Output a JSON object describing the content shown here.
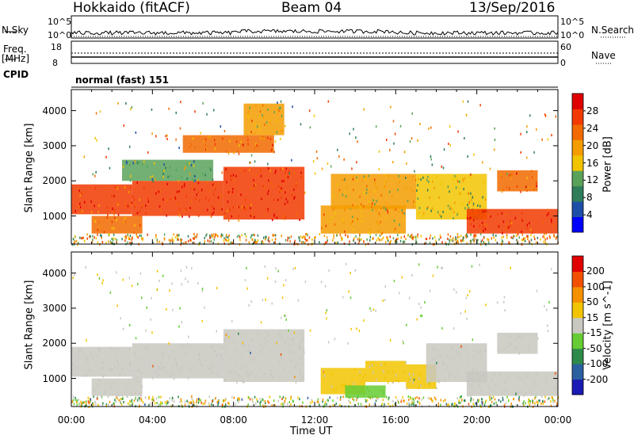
{
  "header": {
    "title_left": "Hokkaido (fitACF)",
    "title_center": "Beam 04",
    "title_right": "13/Sep/2016"
  },
  "top_panels": {
    "nsky_label": "N.Sky",
    "nsky_top": "10^5",
    "nsky_bottom": "10^0",
    "nsearch_label": "N.Search",
    "nsearch_top": "10^5",
    "nsearch_bottom": "10^0",
    "freq_label": "Freq.",
    "freq_unit": "[MHz]",
    "freq_top": "18",
    "freq_bottom": "8",
    "nave_label": "Nave",
    "nave_top": "60",
    "nave_bottom": "0",
    "cpid_label": "CPID",
    "cpid_value": "normal (fast) 151"
  },
  "chart_data": [
    {
      "type": "heatmap",
      "title": "",
      "xlabel": "Time UT",
      "ylabel": "Slant Range [km]",
      "x_ticks": [
        "00:00",
        "04:00",
        "08:00",
        "12:00",
        "16:00",
        "20:00",
        "00:00"
      ],
      "x_range_hours": [
        0,
        24
      ],
      "y_ticks": [
        "1000",
        "2000",
        "3000",
        "4000"
      ],
      "y_range": [
        200,
        4600
      ],
      "colorbar": {
        "label": "Power [dB]",
        "ticks": [
          "4",
          "8",
          "12",
          "16",
          "20",
          "24",
          "28"
        ],
        "range": [
          0,
          32
        ],
        "colors": [
          "#0000ff",
          "#1e4fa8",
          "#2f7d5b",
          "#5aa25a",
          "#f2c400",
          "#f59c00",
          "#f26a00",
          "#f23a00",
          "#e00000"
        ]
      },
      "regions": [
        {
          "t0": 0.0,
          "t1": 3.0,
          "r0": 1050,
          "r1": 1900,
          "value": 26
        },
        {
          "t0": 1.0,
          "t1": 3.5,
          "r0": 500,
          "r1": 1000,
          "value": 22
        },
        {
          "t0": 3.0,
          "t1": 7.5,
          "r0": 1000,
          "r1": 2000,
          "value": 28
        },
        {
          "t0": 7.5,
          "t1": 11.5,
          "r0": 900,
          "r1": 2400,
          "value": 27
        },
        {
          "t0": 2.5,
          "t1": 7.0,
          "r0": 2000,
          "r1": 2600,
          "value": 12
        },
        {
          "t0": 5.5,
          "t1": 10.0,
          "r0": 2800,
          "r1": 3300,
          "value": 22
        },
        {
          "t0": 8.5,
          "t1": 10.5,
          "r0": 3300,
          "r1": 4200,
          "value": 18
        },
        {
          "t0": 12.3,
          "t1": 16.5,
          "r0": 500,
          "r1": 1300,
          "value": 20
        },
        {
          "t0": 12.8,
          "t1": 17.0,
          "r0": 1200,
          "r1": 2200,
          "value": 18
        },
        {
          "t0": 17.0,
          "t1": 20.5,
          "r0": 900,
          "r1": 2200,
          "value": 15
        },
        {
          "t0": 19.5,
          "t1": 24.0,
          "r0": 500,
          "r1": 1200,
          "value": 27
        },
        {
          "t0": 21.0,
          "t1": 23.0,
          "r0": 1700,
          "r1": 2300,
          "value": 24
        }
      ]
    },
    {
      "type": "heatmap",
      "title": "",
      "xlabel": "Time UT",
      "ylabel": "Slant Range [km]",
      "x_ticks": [
        "00:00",
        "04:00",
        "08:00",
        "12:00",
        "16:00",
        "20:00",
        "00:00"
      ],
      "x_range_hours": [
        0,
        24
      ],
      "y_ticks": [
        "1000",
        "2000",
        "3000",
        "4000"
      ],
      "y_range": [
        200,
        4600
      ],
      "colorbar": {
        "label": "Velocity [m s^-1]",
        "ticks": [
          "200",
          "100",
          "50",
          "15",
          "-15",
          "-50",
          "-100",
          "-200"
        ],
        "range": [
          -250,
          250
        ],
        "colors": [
          "#1a1ab4",
          "#2a5fa0",
          "#2e8a4a",
          "#66cc33",
          "#c8c8c0",
          "#f2c400",
          "#f59000",
          "#f25000",
          "#e00000"
        ]
      },
      "regions": [
        {
          "t0": 0.0,
          "t1": 3.0,
          "r0": 1050,
          "r1": 1900,
          "value": 0
        },
        {
          "t0": 1.0,
          "t1": 3.5,
          "r0": 500,
          "r1": 1000,
          "value": 0
        },
        {
          "t0": 3.0,
          "t1": 7.5,
          "r0": 1000,
          "r1": 2000,
          "value": 0
        },
        {
          "t0": 7.5,
          "t1": 11.5,
          "r0": 900,
          "r1": 2400,
          "value": 0
        },
        {
          "t0": 12.3,
          "t1": 14.5,
          "r0": 550,
          "r1": 1300,
          "value": 30
        },
        {
          "t0": 14.5,
          "t1": 16.5,
          "r0": 900,
          "r1": 1500,
          "value": 30
        },
        {
          "t0": 13.5,
          "t1": 15.5,
          "r0": 450,
          "r1": 800,
          "value": -60
        },
        {
          "t0": 16.5,
          "t1": 18.0,
          "r0": 700,
          "r1": 1400,
          "value": 30
        },
        {
          "t0": 17.5,
          "t1": 20.5,
          "r0": 900,
          "r1": 2000,
          "value": 0
        },
        {
          "t0": 19.5,
          "t1": 24.0,
          "r0": 500,
          "r1": 1200,
          "value": 0
        },
        {
          "t0": 21.0,
          "t1": 23.0,
          "r0": 1700,
          "r1": 2300,
          "value": 0
        }
      ]
    }
  ]
}
